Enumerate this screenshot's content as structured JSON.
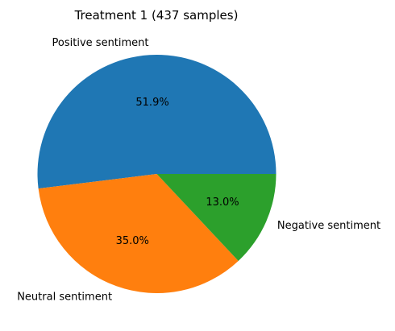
{
  "chart_data": {
    "type": "pie",
    "title": "Treatment 1 (437 samples)",
    "slices": [
      {
        "label": "Positive sentiment",
        "value": 51.9,
        "pct_label": "51.9%",
        "color": "#1f77b4"
      },
      {
        "label": "Neutral sentiment",
        "value": 35.0,
        "pct_label": "35.0%",
        "color": "#ff7f0e"
      },
      {
        "label": "Negative sentiment",
        "value": 13.0,
        "pct_label": "13.0%",
        "color": "#2ca02c"
      }
    ],
    "start_angle_deg": 0,
    "direction": "counterclockwise",
    "legend": "none"
  }
}
